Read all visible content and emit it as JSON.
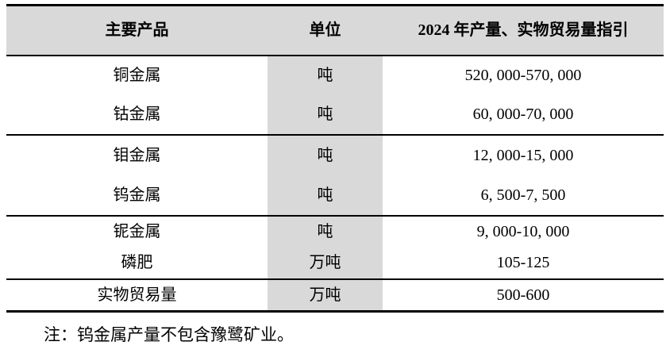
{
  "style": {
    "header_bg": "#d9d9d9",
    "unit_column_bg": "#d9d9d9",
    "border_color": "#000000",
    "page_bg": "#ffffff"
  },
  "table": {
    "headers": {
      "product": "主要产品",
      "unit": "单位",
      "guidance": "2024 年产量、实物贸易量指引"
    },
    "rows": [
      {
        "product": "铜金属",
        "unit": "吨",
        "guidance": "520, 000-570, 000"
      },
      {
        "product": "钴金属",
        "unit": "吨",
        "guidance": "60, 000-70, 000"
      },
      {
        "product": "钼金属",
        "unit": "吨",
        "guidance": "12, 000-15, 000"
      },
      {
        "product": "钨金属",
        "unit": "吨",
        "guidance": "6, 500-7, 500"
      },
      {
        "product": "铌金属",
        "unit": "吨",
        "guidance": "9, 000-10, 000"
      },
      {
        "product": "磷肥",
        "unit": "万吨",
        "guidance": "105-125"
      },
      {
        "product": "实物贸易量",
        "unit": "万吨",
        "guidance": "500-600"
      }
    ]
  },
  "note": "注：钨金属产量不包含豫鹭矿业。"
}
